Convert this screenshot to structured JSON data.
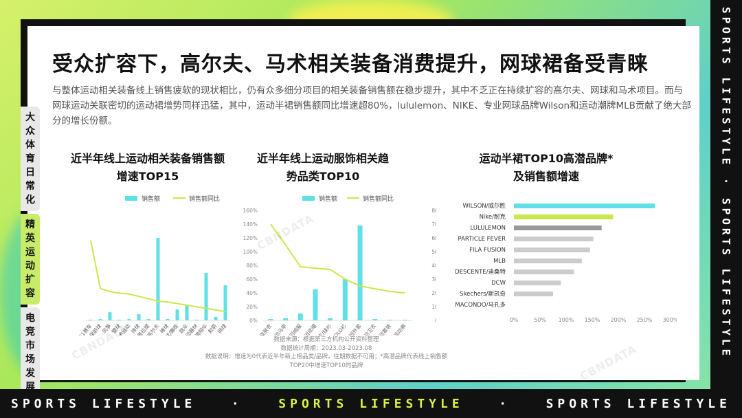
{
  "page": {
    "title": "受众扩容下，高尔夫、马术相关装备消费提升，网球裙备受青睐",
    "intro": "与整体运动相关装备线上销售疲软的现状相比，仍有众多细分项目的相关装备销售额在稳步提升，其中不乏正在持续扩容的高尔夫、网球和马术项目。而与网球运动关联密切的运动裙增势同样迅猛，其中，运动半裙销售额同比增速超80%，lululemon、NIKE、专业网球品牌Wilson和运动潮牌MLB贡献了绝大部分的增长份额。",
    "side_tabs": [
      "大众体育日常化",
      "精英运动扩容",
      "电竞市场发展"
    ],
    "band_text": [
      "SPORTS LIFESTYLE",
      "SPORTS LIFESTYLE",
      "SPORTS LIFESTYLE"
    ],
    "band_dot": "·",
    "vertical_band": "SPORTS LIFESTYLE · SPORTS LIFESTYLE",
    "watermark": "CBNDATA",
    "notes": [
      "数据来源：根据第三方机构公开资料整理",
      "数据统计周期：2023.03-2023.08",
      "数据说明：增速为0代表近半年新上榜品类/品牌，往期数据不可用；*高潜品牌代表线上销售额TOP20中增速TOP10的品牌"
    ]
  },
  "chart_data": [
    {
      "type": "bar+line",
      "title": "近半年线上运动相关装备销售额增速TOP15",
      "legend": [
        "销售额",
        "销售额同比"
      ],
      "categories": [
        "F1赛车",
        "保龄球",
        "风筝",
        "壁球",
        "马术运动",
        "排球",
        "瑜伽/普拉提",
        "高尔夫",
        "棒球",
        "板球/蹦极",
        "跳伞",
        "运动器材",
        "滑翔伞",
        "射箭",
        "网球"
      ],
      "bar_values": [
        1,
        2,
        12,
        1,
        2,
        9,
        2,
        122,
        2,
        16,
        22,
        1,
        70,
        5,
        52
      ],
      "line_values": [
        100,
        40,
        36,
        34,
        33,
        30,
        27,
        24,
        23,
        21,
        19,
        17,
        15,
        13,
        11
      ],
      "colors": {
        "bar": "#5fe0e6",
        "line": "#c9e84a"
      }
    },
    {
      "type": "bar+line",
      "title": "近半年线上运动服饰相关趋势品类TOP10",
      "legend": [
        "销售额",
        "销售额同比"
      ],
      "categories": [
        "皮肤衣",
        "运动马甲",
        "运动羽绒服",
        "运动裙",
        "运动毛衣/线衫",
        "运动POLO衫",
        "运动短外套",
        "运动卫衣",
        "运动套装",
        "运动裤"
      ],
      "bar_values": [
        2,
        3,
        10,
        45,
        3,
        60,
        138,
        2,
        1,
        1
      ],
      "line_values": [
        140,
        110,
        78,
        76,
        74,
        60,
        50,
        46,
        42,
        40
      ],
      "left_axis": [
        "0%",
        "20%",
        "40%",
        "60%",
        "80%",
        "100%",
        "120%",
        "140%",
        "160%"
      ],
      "right_axis": [
        "0%",
        "10%",
        "20%",
        "30%",
        "40%",
        "50%",
        "60%",
        "70%",
        "80%"
      ],
      "colors": {
        "bar": "#5fe0e6",
        "line": "#c9e84a"
      }
    },
    {
      "type": "bar",
      "orientation": "horizontal",
      "title": "运动半裙TOP10高潜品牌*及销售额增速",
      "categories": [
        "WILSON/威尔胜",
        "Nike/耐克",
        "LULULEMON",
        "PARTICLE FEVER",
        "FILA FUSION",
        "MLB",
        "DESCENTE/迪桑特",
        "DCW",
        "Skechers/斯凯奇",
        "MACONDO/马孔多"
      ],
      "values": [
        270,
        190,
        168,
        152,
        146,
        130,
        115,
        90,
        75,
        0
      ],
      "x_axis": [
        "0%",
        "50%",
        "100%",
        "150%",
        "200%",
        "250%",
        "300%"
      ],
      "xlim": [
        0,
        300
      ],
      "colors": [
        "#5fe0e6",
        "#c9e84a",
        "#999999",
        "#cccccc",
        "#cccccc",
        "#cccccc",
        "#cccccc",
        "#cccccc",
        "#cccccc",
        "#cccccc"
      ]
    }
  ]
}
